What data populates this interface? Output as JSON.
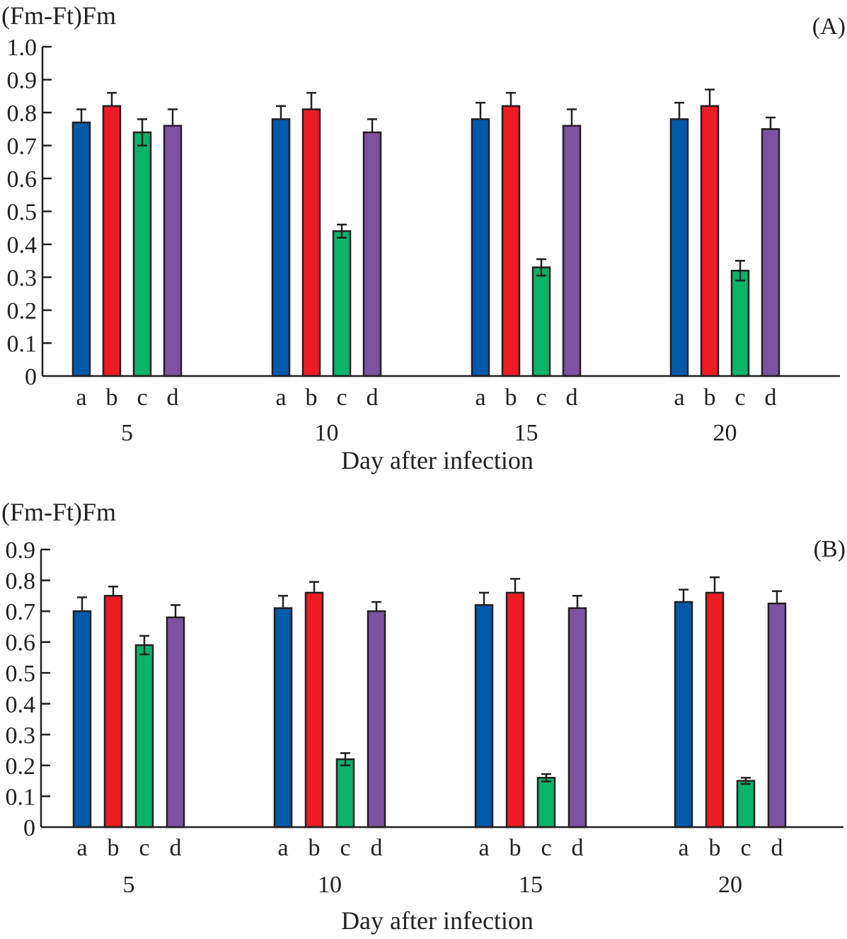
{
  "colors": {
    "a": "#005aaa",
    "b": "#ed1c24",
    "c": "#0ab26a",
    "d": "#7d52a1",
    "axis": "#231f20"
  },
  "chart_data": [
    {
      "type": "bar",
      "panel_label": "(A)",
      "title": "",
      "ylabel": "(Fm-Ft)Fm",
      "xlabel": "Day after infection",
      "ylim": [
        0,
        1.0
      ],
      "yticks": [
        "0",
        "0.1",
        "0.2",
        "0.3",
        "0.4",
        "0.5",
        "0.6",
        "0.7",
        "0.8",
        "0.9",
        "1.0"
      ],
      "grid": false,
      "categories": [
        "5",
        "10",
        "15",
        "20"
      ],
      "sub_categories": [
        "a",
        "b",
        "c",
        "d"
      ],
      "series": [
        {
          "name": "a",
          "values": [
            0.77,
            0.78,
            0.78,
            0.78
          ],
          "errors": [
            0.04,
            0.04,
            0.05,
            0.05
          ]
        },
        {
          "name": "b",
          "values": [
            0.82,
            0.81,
            0.82,
            0.82
          ],
          "errors": [
            0.04,
            0.05,
            0.04,
            0.05
          ]
        },
        {
          "name": "c",
          "values": [
            0.74,
            0.44,
            0.33,
            0.32
          ],
          "errors": [
            0.04,
            0.02,
            0.025,
            0.03
          ]
        },
        {
          "name": "d",
          "values": [
            0.76,
            0.74,
            0.76,
            0.75
          ],
          "errors": [
            0.05,
            0.04,
            0.05,
            0.035
          ]
        }
      ]
    },
    {
      "type": "bar",
      "panel_label": "(B)",
      "title": "",
      "ylabel": "(Fm-Ft)Fm",
      "xlabel": "Day after infection",
      "ylim": [
        0,
        0.9
      ],
      "yticks": [
        "0",
        "0.1",
        "0.2",
        "0.3",
        "0.4",
        "0.5",
        "0.6",
        "0.7",
        "0.8",
        "0.9"
      ],
      "grid": false,
      "categories": [
        "5",
        "10",
        "15",
        "20"
      ],
      "sub_categories": [
        "a",
        "b",
        "c",
        "d"
      ],
      "series": [
        {
          "name": "a",
          "values": [
            0.7,
            0.71,
            0.72,
            0.73
          ],
          "errors": [
            0.045,
            0.04,
            0.04,
            0.04
          ]
        },
        {
          "name": "b",
          "values": [
            0.75,
            0.76,
            0.76,
            0.76
          ],
          "errors": [
            0.03,
            0.035,
            0.045,
            0.05
          ]
        },
        {
          "name": "c",
          "values": [
            0.59,
            0.22,
            0.16,
            0.15
          ],
          "errors": [
            0.03,
            0.02,
            0.012,
            0.01
          ]
        },
        {
          "name": "d",
          "values": [
            0.68,
            0.7,
            0.71,
            0.725
          ],
          "errors": [
            0.04,
            0.03,
            0.04,
            0.04
          ]
        }
      ]
    }
  ]
}
